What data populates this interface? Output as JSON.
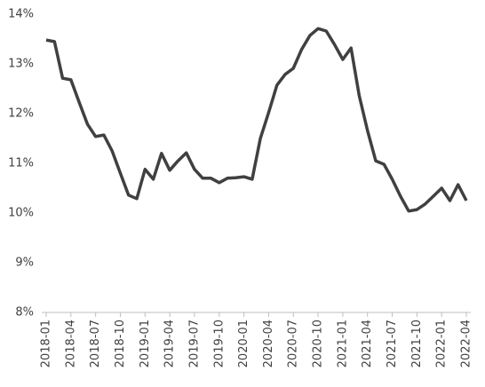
{
  "chart_data": {
    "type": "line",
    "categories": [
      "2018-01",
      null,
      null,
      "2018-04",
      null,
      null,
      "2018-07",
      null,
      null,
      "2018-10",
      null,
      null,
      "2019-01",
      null,
      null,
      "2019-04",
      null,
      null,
      "2019-07",
      null,
      null,
      "2019-10",
      null,
      null,
      "2020-01",
      null,
      null,
      "2020-04",
      null,
      null,
      "2020-07",
      null,
      null,
      "2020-10",
      null,
      null,
      "2021-01",
      null,
      null,
      "2021-04",
      null,
      null,
      "2021-07",
      null,
      null,
      "2021-10",
      null,
      null,
      "2022-01",
      null,
      null,
      "2022-04"
    ],
    "values": [
      13.48,
      13.45,
      12.71,
      12.68,
      12.23,
      11.79,
      11.54,
      11.57,
      11.25,
      10.8,
      10.36,
      10.29,
      10.88,
      10.68,
      11.2,
      10.86,
      11.05,
      11.21,
      10.88,
      10.7,
      10.7,
      10.61,
      10.7,
      10.71,
      10.73,
      10.68,
      11.5,
      12.02,
      12.57,
      12.79,
      12.91,
      13.29,
      13.57,
      13.71,
      13.66,
      13.39,
      13.09,
      13.32,
      12.36,
      11.66,
      11.05,
      10.98,
      10.68,
      10.34,
      10.04,
      10.07,
      10.18,
      10.34,
      10.5,
      10.25,
      10.57,
      10.25
    ],
    "color": "#404040",
    "ylim": [
      8,
      14
    ],
    "yticks": [
      {
        "value": 8,
        "label": "8%"
      },
      {
        "value": 9,
        "label": "9%"
      },
      {
        "value": 10,
        "label": "10%"
      },
      {
        "value": 11,
        "label": "11%"
      },
      {
        "value": 12,
        "label": "12%"
      },
      {
        "value": 13,
        "label": "13%"
      },
      {
        "value": 14,
        "label": "14%"
      }
    ],
    "grid": false
  }
}
